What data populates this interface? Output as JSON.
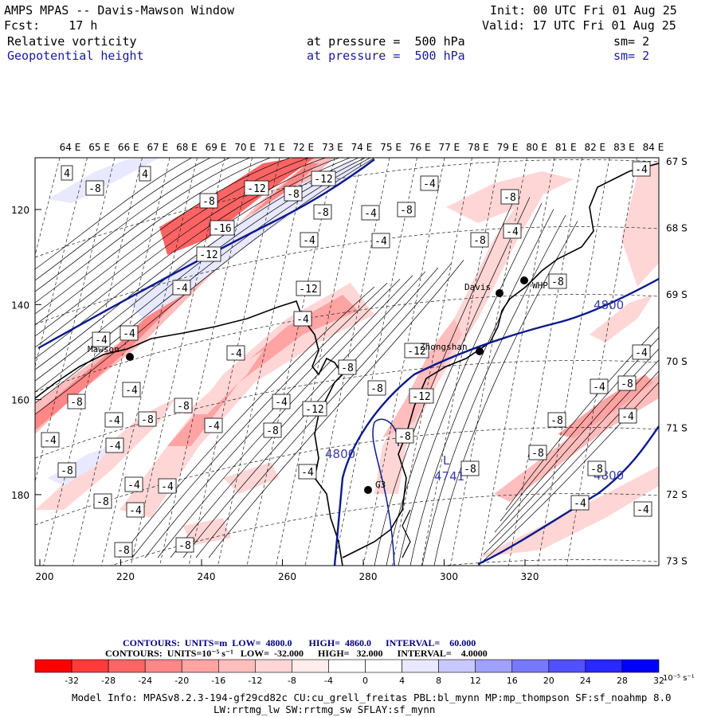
{
  "header": {
    "title": "AMPS MPAS -- Davis-Mawson Window",
    "forecast": "Fcst:    17 h",
    "init": "Init: 00 UTC Fri 01 Aug 25",
    "valid": "Valid: 17 UTC Fri 01 Aug 25",
    "field1": {
      "name": "Relative vorticity",
      "level": "at pressure =  500 hPa",
      "sm": "sm= 2"
    },
    "field2": {
      "name": "Geopotential height",
      "level": "at pressure =  500 hPa",
      "sm": "sm= 2"
    }
  },
  "map": {
    "lon_labels": [
      "64 E",
      "65 E",
      "66 E",
      "67 E",
      "68 E",
      "69 E",
      "70 E",
      "71 E",
      "72 E",
      "73 E",
      "74 E",
      "75 E",
      "76 E",
      "77 E",
      "78 E",
      "79 E",
      "80 E",
      "81 E",
      "82 E",
      "83 E",
      "84 E"
    ],
    "lat_labels": [
      "67 S",
      "68 S",
      "69 S",
      "70 S",
      "71 S",
      "72 S",
      "73 S"
    ],
    "x_ticks": [
      "200",
      "220",
      "240",
      "260",
      "280",
      "300",
      "320"
    ],
    "y_ticks": [
      "120",
      "140",
      "160",
      "180"
    ],
    "stations": [
      {
        "name": "Mawson"
      },
      {
        "name": "Davis"
      },
      {
        "name": "WHP"
      },
      {
        "name": "Zhongshan"
      },
      {
        "name": "G3"
      }
    ],
    "height_labels": [
      "4800",
      "4800",
      "4800"
    ],
    "low": {
      "symbol": "L",
      "value": "4741"
    },
    "vort_labels": [
      "4",
      "4",
      "-8",
      "-12",
      "-8",
      "-8",
      "-12",
      "-4",
      "-8",
      "-4",
      "-16",
      "-12",
      "-4",
      "-4",
      "-8",
      "-4",
      "-8",
      "-12",
      "-4",
      "-8",
      "-4",
      "-8",
      "-4",
      "-4",
      "-4",
      "-12",
      "-8",
      "-8",
      "-12",
      "-4",
      "-4",
      "-8",
      "-4",
      "-8",
      "-4",
      "-8",
      "-4",
      "-12",
      "-4",
      "-8",
      "-4",
      "-8",
      "-8",
      "-4",
      "-4",
      "-4",
      "-8",
      "-8",
      "-8",
      "-4",
      "-8",
      "-8",
      "-4",
      "-4",
      "-8",
      "-4",
      "-4",
      "-4",
      "-8",
      "-8"
    ]
  },
  "contour_info": {
    "line1": "CONTOURS:  UNITS=m  LOW=  4800.0       HIGH=  4860.0      INTERVAL=    60.000",
    "line2": "CONTOURS:  UNITS=10⁻⁵ s⁻¹   LOW=  -32.000      HIGH=   32.000      INTERVAL=    4.0000"
  },
  "colorbar": {
    "colors": [
      "#ff0000",
      "#ff3a3a",
      "#ff6464",
      "#ff8787",
      "#ffa3a3",
      "#ffbdbd",
      "#ffd6d6",
      "#ffecec",
      "#ffffff",
      "#ffffff",
      "#e8e8ff",
      "#c8c8ff",
      "#a0a0ff",
      "#7878ff",
      "#5050ff",
      "#2828ff",
      "#0000ff"
    ],
    "labels": [
      "-32",
      "-28",
      "-24",
      "-20",
      "-16",
      "-12",
      "-8",
      "-4",
      "0",
      "4",
      "8",
      "12",
      "16",
      "20",
      "24",
      "28",
      "32"
    ],
    "unit": "10⁻⁵ s⁻¹"
  },
  "footer": {
    "line1": "Model Info: MPASv8.2.3-194-gf29cd82c CU:cu_grell_freitas PBL:bl_mynn MP:mp_thompson SF:sf_noahmp 8.0",
    "line2": "LW:rrtmg_lw SW:rrtmg_sw SFLAY:sf_mynn"
  }
}
